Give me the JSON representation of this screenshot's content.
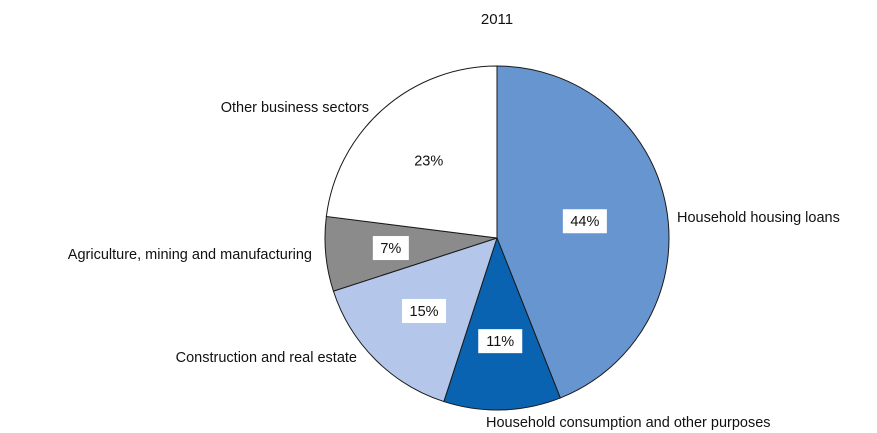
{
  "chart_data": {
    "type": "pie",
    "title": "2011",
    "start_angle_deg": 0,
    "direction": "clockwise",
    "slices": [
      {
        "label": "Household housing loans",
        "value": 44,
        "value_label": "44%",
        "color": "#6795cf",
        "label_side": "right"
      },
      {
        "label": "Household consumption and other purposes",
        "value": 11,
        "value_label": "11%",
        "color": "#0a63b0",
        "label_side": "bottom"
      },
      {
        "label": "Construction and real estate",
        "value": 15,
        "value_label": "15%",
        "color": "#b4c6e9",
        "label_side": "left"
      },
      {
        "label": "Agriculture, mining and manufacturing",
        "value": 7,
        "value_label": "7%",
        "color": "#8b8b8b",
        "label_side": "left"
      },
      {
        "label": "Other business sectors",
        "value": 23,
        "value_label": "23%",
        "color": "#ffffff",
        "label_side": "top-left"
      }
    ],
    "legend": "none",
    "stroke_color": "#1a1a1a"
  }
}
